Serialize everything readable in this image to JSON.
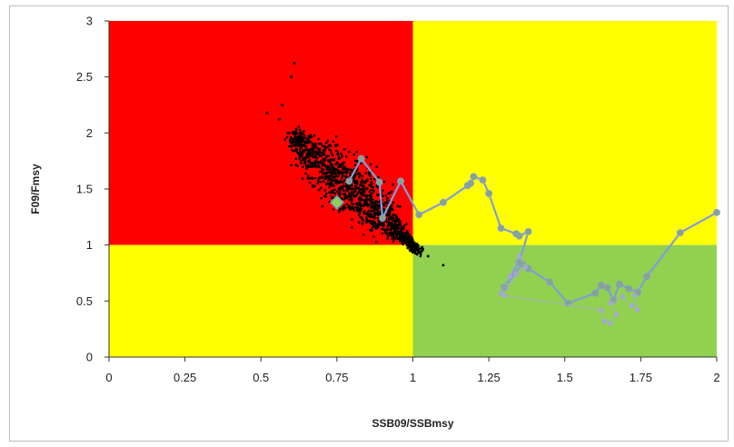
{
  "chart_data": {
    "type": "scatter",
    "xlabel": "SSB09/SSBmsy",
    "ylabel": "F09/Fmsy",
    "xlim": [
      0,
      2
    ],
    "ylim": [
      0,
      3
    ],
    "x_ticks": [
      "0",
      "0.25",
      "0.5",
      "0.75",
      "1",
      "1.25",
      "1.5",
      "1.75",
      "2"
    ],
    "y_ticks": [
      "0",
      "0.5",
      "1",
      "1.5",
      "2",
      "2.5",
      "3"
    ],
    "grid": false,
    "legend": "none",
    "zones": [
      {
        "x": [
          0,
          1
        ],
        "y": [
          1,
          3
        ],
        "color": "#ff0000"
      },
      {
        "x": [
          1,
          2
        ],
        "y": [
          1,
          3
        ],
        "color": "#ffff00"
      },
      {
        "x": [
          0,
          1
        ],
        "y": [
          0,
          1
        ],
        "color": "#ffff00"
      },
      {
        "x": [
          1,
          2
        ],
        "y": [
          0,
          1
        ],
        "color": "#92d050"
      }
    ],
    "cloud": {
      "color": "#000000",
      "axis_start": [
        0.6,
        2.0
      ],
      "axis_end": [
        1.02,
        0.95
      ],
      "n_points": 1400,
      "outliers": [
        [
          0.61,
          2.62
        ],
        [
          0.6,
          2.5
        ],
        [
          0.57,
          2.25
        ],
        [
          0.52,
          2.18
        ],
        [
          1.1,
          0.82
        ],
        [
          1.05,
          0.9
        ],
        [
          0.56,
          2.12
        ]
      ]
    },
    "estimate": {
      "x": 0.75,
      "y": 1.38,
      "color": "#92d050"
    },
    "series": [
      {
        "color": "#7f9fd6",
        "marker_color": "#8aa38a",
        "points": [
          [
            0.79,
            1.57
          ],
          [
            0.83,
            1.77
          ],
          [
            0.89,
            1.56
          ],
          [
            0.9,
            1.24
          ],
          [
            0.96,
            1.57
          ],
          [
            1.02,
            1.27
          ],
          [
            1.1,
            1.38
          ],
          [
            1.18,
            1.53
          ],
          [
            1.19,
            1.55
          ],
          [
            1.2,
            1.61
          ],
          [
            1.23,
            1.58
          ],
          [
            1.25,
            1.46
          ],
          [
            1.29,
            1.15
          ],
          [
            1.34,
            1.1
          ],
          [
            1.35,
            1.08
          ],
          [
            1.38,
            1.12
          ],
          [
            1.35,
            0.85
          ],
          [
            1.3,
            0.62
          ],
          [
            1.36,
            0.83
          ],
          [
            1.38,
            0.79
          ],
          [
            1.45,
            0.67
          ],
          [
            1.51,
            0.48
          ],
          [
            1.6,
            0.57
          ],
          [
            1.62,
            0.64
          ],
          [
            1.64,
            0.62
          ],
          [
            1.66,
            0.51
          ],
          [
            1.68,
            0.65
          ],
          [
            1.71,
            0.61
          ],
          [
            1.74,
            0.58
          ],
          [
            1.77,
            0.72
          ],
          [
            1.88,
            1.11
          ],
          [
            2.0,
            1.29
          ]
        ]
      },
      {
        "color": "#a3a8d6",
        "dashed": true,
        "points": [
          [
            1.29,
            0.57
          ],
          [
            1.32,
            0.72
          ],
          [
            1.35,
            0.9
          ],
          [
            1.37,
            0.8
          ],
          [
            1.34,
            0.74
          ],
          [
            1.3,
            0.55
          ],
          [
            1.62,
            0.42
          ],
          [
            1.63,
            0.32
          ],
          [
            1.65,
            0.3
          ],
          [
            1.67,
            0.38
          ],
          [
            1.65,
            0.48
          ],
          [
            1.69,
            0.54
          ],
          [
            1.72,
            0.46
          ],
          [
            1.74,
            0.42
          ],
          [
            1.73,
            0.55
          ]
        ]
      }
    ]
  }
}
